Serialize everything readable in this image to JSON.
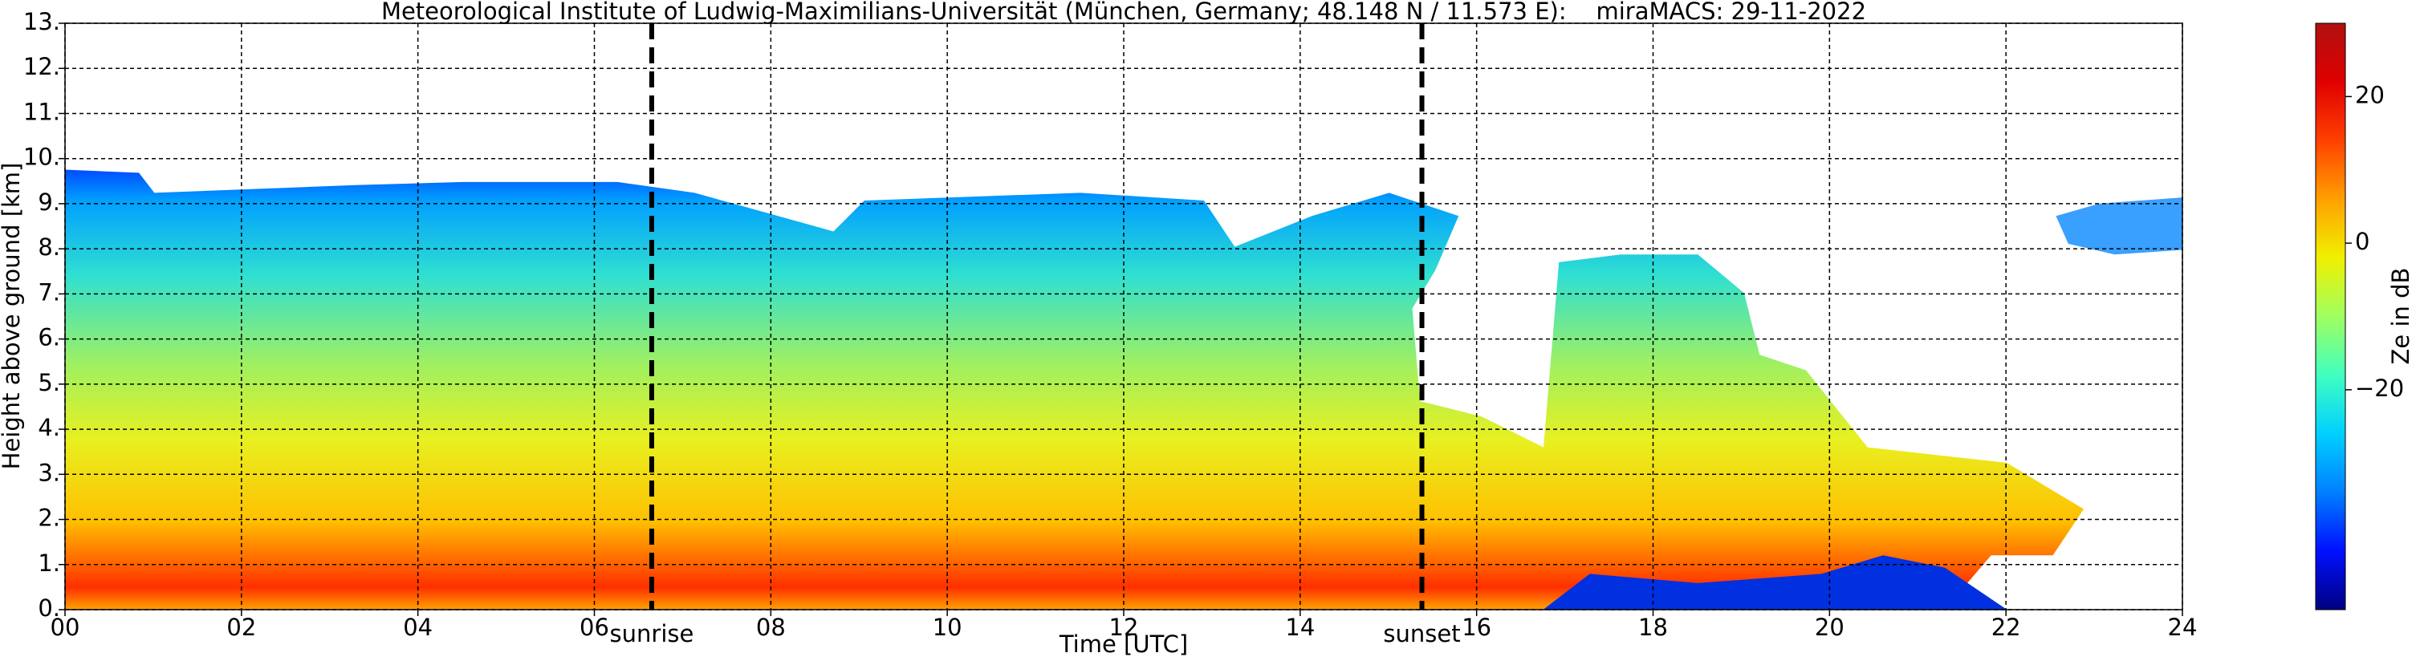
{
  "chart_data": {
    "type": "heatmap",
    "title": "Meteorological Institute of Ludwig-Maximilians-Universität (München, Germany; 48.148 N / 11.573 E):    miraMACS: 29-11-2022",
    "xlabel": "Time [UTC]",
    "ylabel": "Height above ground [km]",
    "xlim": [
      0,
      24
    ],
    "ylim": [
      0,
      13
    ],
    "xticks": [
      {
        "value": 0,
        "label": "00"
      },
      {
        "value": 2,
        "label": "02"
      },
      {
        "value": 4,
        "label": "04"
      },
      {
        "value": 6,
        "label": "06"
      },
      {
        "value": 8,
        "label": "08"
      },
      {
        "value": 10,
        "label": "10"
      },
      {
        "value": 12,
        "label": "12"
      },
      {
        "value": 14,
        "label": "14"
      },
      {
        "value": 16,
        "label": "16"
      },
      {
        "value": 18,
        "label": "18"
      },
      {
        "value": 20,
        "label": "20"
      },
      {
        "value": 22,
        "label": "22"
      },
      {
        "value": 24,
        "label": "24"
      }
    ],
    "yticks": [
      {
        "value": 0,
        "label": "0."
      },
      {
        "value": 1,
        "label": "1."
      },
      {
        "value": 2,
        "label": "2."
      },
      {
        "value": 3,
        "label": "3."
      },
      {
        "value": 4,
        "label": "4."
      },
      {
        "value": 5,
        "label": "5."
      },
      {
        "value": 6,
        "label": "6."
      },
      {
        "value": 7,
        "label": "7."
      },
      {
        "value": 8,
        "label": "8."
      },
      {
        "value": 9,
        "label": "9."
      },
      {
        "value": 10,
        "label": "10."
      },
      {
        "value": 11,
        "label": "11."
      },
      {
        "value": 12,
        "label": "12."
      },
      {
        "value": 13,
        "label": "13."
      }
    ],
    "grid": true,
    "annotations": [
      {
        "label": "sunrise",
        "x": 6.65
      },
      {
        "label": "sunset",
        "x": 15.38
      }
    ],
    "colorbar": {
      "label": "Ze in dB",
      "lim": [
        -50,
        30
      ],
      "ticks": [
        {
          "value": -20,
          "label": "−20"
        },
        0,
        20
      ],
      "colors": [
        "#000080",
        "#0010ff",
        "#0080ff",
        "#00d0ff",
        "#40ffc0",
        "#a0ff60",
        "#f0f000",
        "#ffa000",
        "#ff4000",
        "#e00000",
        "#b01010"
      ]
    }
  }
}
